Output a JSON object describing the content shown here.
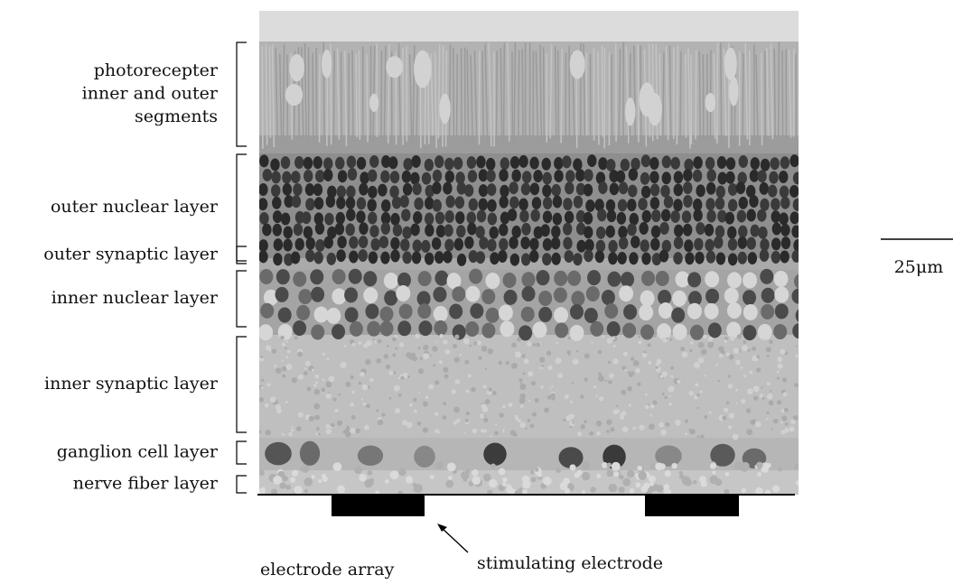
{
  "layers": [
    {
      "lines": [
        "photorecepter",
        "inner and outer",
        "segments"
      ]
    },
    {
      "lines": [
        "outer nuclear layer"
      ]
    },
    {
      "lines": [
        "outer synaptic layer"
      ]
    },
    {
      "lines": [
        "inner nuclear layer"
      ]
    },
    {
      "lines": [
        "inner synaptic layer"
      ]
    },
    {
      "lines": [
        "ganglion cell layer"
      ]
    },
    {
      "lines": [
        "nerve fiber layer"
      ]
    }
  ],
  "scale_bar": "25μm",
  "annotations": {
    "electrode_array": "electrode array",
    "stimulating_electrode": "stimulating electrode"
  }
}
